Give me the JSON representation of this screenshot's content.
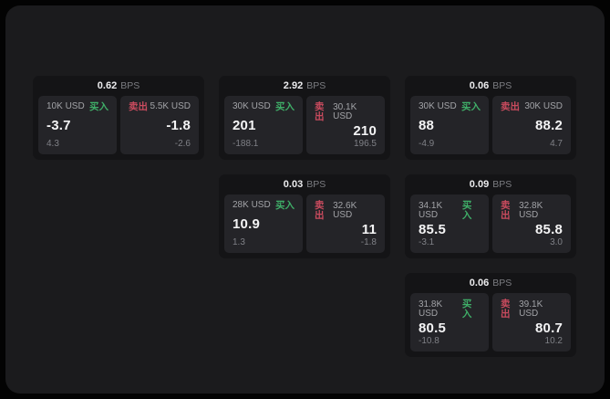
{
  "labels": {
    "bps": "BPS",
    "buy": "买入",
    "sell": "卖出"
  },
  "colors": {
    "page_bg": "#030303",
    "window_bg": "#1b1b1d",
    "card_bg": "#141416",
    "tile_bg": "#242428",
    "buy_green": "#3fae68",
    "sell_red": "#c94b5e"
  },
  "cards": [
    {
      "bps": "0.62",
      "buy": {
        "amount": "10K USD",
        "price": "-3.7",
        "delta": "4.3"
      },
      "sell": {
        "amount": "5.5K USD",
        "price": "-1.8",
        "delta": "-2.6"
      }
    },
    {
      "bps": "2.92",
      "buy": {
        "amount": "30K USD",
        "price": "201",
        "delta": "-188.1"
      },
      "sell": {
        "amount": "30.1K USD",
        "price": "210",
        "delta": "196.5"
      }
    },
    {
      "bps": "0.06",
      "buy": {
        "amount": "30K USD",
        "price": "88",
        "delta": "-4.9"
      },
      "sell": {
        "amount": "30K USD",
        "price": "88.2",
        "delta": "4.7"
      }
    },
    {
      "bps": "0.03",
      "buy": {
        "amount": "28K USD",
        "price": "10.9",
        "delta": "1.3"
      },
      "sell": {
        "amount": "32.6K USD",
        "price": "11",
        "delta": "-1.8"
      }
    },
    {
      "bps": "0.09",
      "buy": {
        "amount": "34.1K USD",
        "price": "85.5",
        "delta": "-3.1"
      },
      "sell": {
        "amount": "32.8K USD",
        "price": "85.8",
        "delta": "3.0"
      }
    },
    {
      "bps": "0.06",
      "buy": {
        "amount": "31.8K USD",
        "price": "80.5",
        "delta": "-10.8"
      },
      "sell": {
        "amount": "39.1K USD",
        "price": "80.7",
        "delta": "10.2"
      }
    }
  ]
}
